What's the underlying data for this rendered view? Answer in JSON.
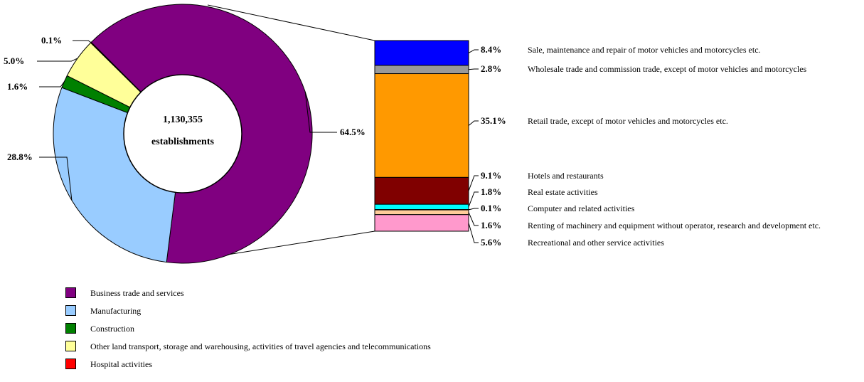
{
  "chart_data": [
    {
      "type": "pie",
      "center_label": [
        "1,130,355",
        "establishments"
      ],
      "slices": [
        {
          "name": "Business trade and services",
          "value": 64.5,
          "label": "64.5%",
          "color": "#800080"
        },
        {
          "name": "Manufacturing",
          "value": 28.8,
          "label": "28.8%",
          "color": "#99CCFF"
        },
        {
          "name": "Construction",
          "value": 1.6,
          "label": "1.6%",
          "color": "#008000"
        },
        {
          "name": "Other land transport, storage and warehousing, activities of travel agencies and telecommunications",
          "value": 5.0,
          "label": "5.0%",
          "color": "#FFFF99"
        },
        {
          "name": "Hospital activities",
          "value": 0.1,
          "label": "0.1%",
          "color": "#FF0000"
        }
      ]
    },
    {
      "type": "bar",
      "stacked": true,
      "series": [
        {
          "name": "Sale, maintenance and repair of motor vehicles and motorcycles etc.",
          "value": 8.4,
          "label": "8.4%",
          "color": "#0000FF"
        },
        {
          "name": "Wholesale trade and commission trade, except of motor vehicles and motorcycles",
          "value": 2.8,
          "label": "2.8%",
          "color": "#999999"
        },
        {
          "name": "Retail trade, except of motor vehicles and motorcycles etc.",
          "value": 35.1,
          "label": "35.1%",
          "color": "#FF9900"
        },
        {
          "name": "Hotels and restaurants",
          "value": 9.1,
          "label": "9.1%",
          "color": "#800000"
        },
        {
          "name": "Real estate activities",
          "value": 1.8,
          "label": "1.8%",
          "color": "#00FFFF"
        },
        {
          "name": "Computer and related activities",
          "value": 0.1,
          "label": "0.1%",
          "color": "#FFFF00"
        },
        {
          "name": "Renting of machinery and equipment without operator, research and development etc.",
          "value": 1.6,
          "label": "1.6%",
          "color": "#FFCC99"
        },
        {
          "name": "Recreational and other service activities",
          "value": 5.6,
          "label": "5.6%",
          "color": "#FF99CC"
        }
      ]
    }
  ],
  "legend": [
    {
      "label": "Business trade and services",
      "color": "#800080"
    },
    {
      "label": "Manufacturing",
      "color": "#99CCFF"
    },
    {
      "label": "Construction",
      "color": "#008000"
    },
    {
      "label": "Other land transport, storage and warehousing, activities of travel agencies and telecommunications",
      "color": "#FFFF99"
    },
    {
      "label": "Hospital activities",
      "color": "#FF0000"
    }
  ]
}
